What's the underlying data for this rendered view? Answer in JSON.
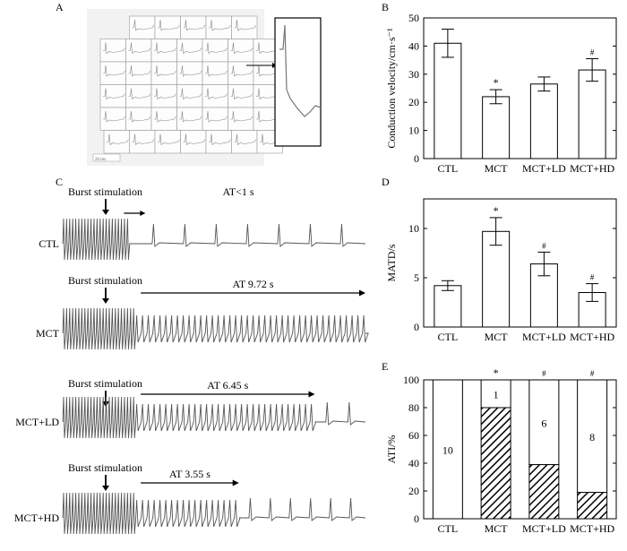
{
  "panel_labels": {
    "a": "A",
    "b": "B",
    "c": "C",
    "d": "D",
    "e": "E"
  },
  "panel_a": {
    "grid_rows": 6,
    "grid_cols": 7,
    "scale_label": "20 ms"
  },
  "panel_c": {
    "traces": [
      {
        "group": "CTL",
        "stim_label": "Burst stimulation",
        "at_label": "AT<1 s",
        "burst_end_frac": 0.22,
        "at_frac": 0.0,
        "slow_beats": 7
      },
      {
        "group": "MCT",
        "stim_label": "Burst stimulation",
        "at_label": "AT 9.72 s",
        "burst_end_frac": 0.24,
        "at_frac": 1.0,
        "slow_beats": 0
      },
      {
        "group": "MCT+LD",
        "stim_label": "Burst stimulation",
        "at_label": "AT 6.45 s",
        "burst_end_frac": 0.24,
        "at_frac": 0.78,
        "slow_beats": 2
      },
      {
        "group": "MCT+HD",
        "stim_label": "Burst stimulation",
        "at_label": "AT 3.55 s",
        "burst_end_frac": 0.24,
        "at_frac": 0.45,
        "slow_beats": 6
      }
    ]
  },
  "colors": {
    "hatch": "#000000",
    "bar_fill": "#ffffff",
    "trace": "#555555"
  },
  "chart_data": [
    {
      "panel": "B",
      "type": "bar",
      "categories": [
        "CTL",
        "MCT",
        "MCT+LD",
        "MCT+HD"
      ],
      "values": [
        41,
        22,
        26.5,
        31.5
      ],
      "errors": [
        5,
        2.5,
        2.5,
        4
      ],
      "annotations": [
        "",
        "*",
        "",
        "#"
      ],
      "ylabel": "Conduction velocity/cm·s⁻¹",
      "ylim": [
        0,
        50
      ],
      "yticks": [
        0,
        10,
        20,
        30,
        40,
        50
      ]
    },
    {
      "panel": "D",
      "type": "bar",
      "categories": [
        "CTL",
        "MCT",
        "MCT+LD",
        "MCT+HD"
      ],
      "values": [
        4.2,
        9.7,
        6.4,
        3.5
      ],
      "errors": [
        0.5,
        1.4,
        1.2,
        0.9
      ],
      "annotations": [
        "",
        "*",
        "#",
        "#"
      ],
      "ylabel": "MATD/s",
      "ylim": [
        0,
        13
      ],
      "yticks": [
        0,
        5,
        10
      ]
    },
    {
      "panel": "E",
      "type": "bar",
      "stacked": true,
      "categories": [
        "CTL",
        "MCT",
        "MCT+LD",
        "MCT+HD"
      ],
      "series": [
        {
          "name": "induced (hatched)",
          "values": [
            0,
            80,
            39,
            19
          ]
        },
        {
          "name": "not induced (open)",
          "values": [
            100,
            20,
            61,
            81
          ]
        }
      ],
      "segment_labels": [
        "10",
        "1",
        "6",
        "8"
      ],
      "annotations": [
        "",
        "*",
        "#",
        "#"
      ],
      "ylabel": "ATI/%",
      "ylim": [
        0,
        100
      ],
      "yticks": [
        0,
        20,
        40,
        60,
        80,
        100
      ]
    }
  ]
}
